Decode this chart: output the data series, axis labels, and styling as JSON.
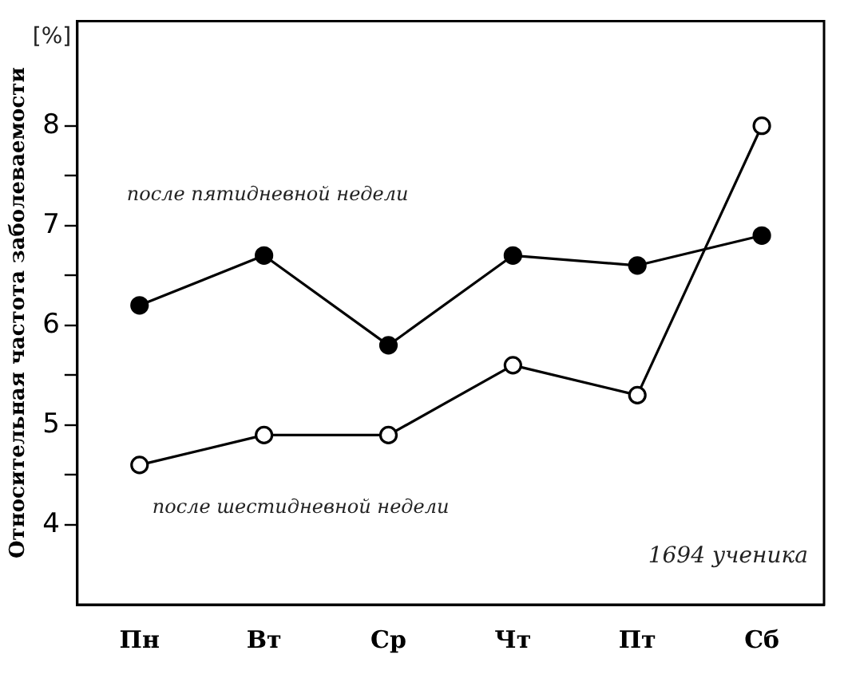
{
  "chart_data": {
    "type": "line",
    "ylabel": "Относительная частота заболеваемости",
    "categories": [
      "Пн",
      "Вт",
      "Ср",
      "Чт",
      "Пт",
      "Сб"
    ],
    "series": [
      {
        "name": "после пятидневной недели",
        "color": "#000000",
        "values": [
          6.2,
          6.7,
          5.8,
          6.7,
          6.6,
          6.9
        ]
      },
      {
        "name": "после шестидневной недели",
        "color": "#000000",
        "values": [
          4.6,
          4.9,
          4.9,
          5.6,
          5.3,
          8.0
        ]
      }
    ],
    "ylim": [
      3.2,
      9.05
    ],
    "yticks": [
      4,
      {
        "value": 4.5,
        "label": null
      },
      5,
      {
        "value": 5.5,
        "label": null
      },
      6,
      {
        "value": 6.5,
        "label": null
      },
      7,
      {
        "value": 7.5,
        "label": null
      },
      8
    ],
    "annotations": [
      "[%]",
      "1694 ученика"
    ],
    "marker": "circle",
    "grid": false,
    "legend": false
  }
}
